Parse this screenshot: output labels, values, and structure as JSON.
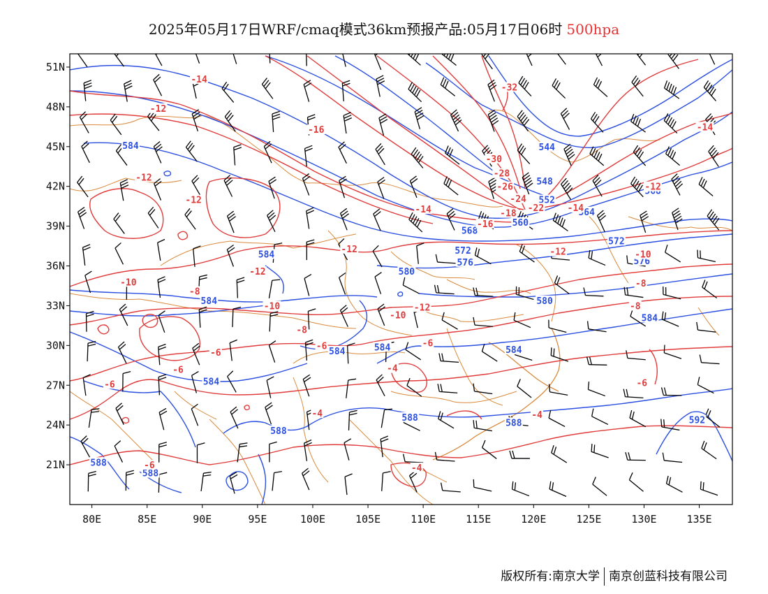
{
  "title": {
    "main": "2025年05月17日WRF/cmaq模式36km预报产品:05月17日06时",
    "level": "500hpa"
  },
  "axes": {
    "lon_ticks": [
      {
        "value": 80,
        "label": "80E"
      },
      {
        "value": 85,
        "label": "85E"
      },
      {
        "value": 90,
        "label": "90E"
      },
      {
        "value": 95,
        "label": "95E"
      },
      {
        "value": 100,
        "label": "100E"
      },
      {
        "value": 105,
        "label": "105E"
      },
      {
        "value": 110,
        "label": "110E"
      },
      {
        "value": 115,
        "label": "115E"
      },
      {
        "value": 120,
        "label": "120E"
      },
      {
        "value": 125,
        "label": "125E"
      },
      {
        "value": 130,
        "label": "130E"
      },
      {
        "value": 135,
        "label": "135E"
      }
    ],
    "lat_ticks": [
      {
        "value": 51,
        "label": "51N"
      },
      {
        "value": 48,
        "label": "48N"
      },
      {
        "value": 45,
        "label": "45N"
      },
      {
        "value": 42,
        "label": "42N"
      },
      {
        "value": 39,
        "label": "39N"
      },
      {
        "value": 36,
        "label": "36N"
      },
      {
        "value": 33,
        "label": "33N"
      },
      {
        "value": 30,
        "label": "30N"
      },
      {
        "value": 27,
        "label": "27N"
      },
      {
        "value": 24,
        "label": "24N"
      },
      {
        "value": 21,
        "label": "21N"
      }
    ],
    "lon_range": [
      78,
      138
    ],
    "lat_range": [
      18,
      52
    ]
  },
  "colors": {
    "height_contour": "#2b4fe0",
    "temp_contour": "#e03b3b",
    "boundary": "#d98a3c",
    "wind_barb": "#000000"
  },
  "height_labels": [
    {
      "text": "584",
      "lon": 83.5,
      "lat": 45.1
    },
    {
      "text": "544",
      "lon": 121.2,
      "lat": 45.0
    },
    {
      "text": "548",
      "lon": 121.0,
      "lat": 42.4
    },
    {
      "text": "552",
      "lon": 121.2,
      "lat": 41.0
    },
    {
      "text": "568",
      "lon": 130.8,
      "lat": 41.7
    },
    {
      "text": "564",
      "lon": 124.8,
      "lat": 40.1
    },
    {
      "text": "560",
      "lon": 118.8,
      "lat": 39.3
    },
    {
      "text": "568",
      "lon": 114.2,
      "lat": 38.7
    },
    {
      "text": "572",
      "lon": 113.6,
      "lat": 37.2
    },
    {
      "text": "572",
      "lon": 127.5,
      "lat": 37.9
    },
    {
      "text": "576",
      "lon": 113.8,
      "lat": 36.3
    },
    {
      "text": "576",
      "lon": 129.8,
      "lat": 36.4
    },
    {
      "text": "584",
      "lon": 95.8,
      "lat": 36.9
    },
    {
      "text": "580",
      "lon": 108.5,
      "lat": 35.6
    },
    {
      "text": "580",
      "lon": 121.0,
      "lat": 33.4
    },
    {
      "text": "584",
      "lon": 90.6,
      "lat": 33.4
    },
    {
      "text": "584",
      "lon": 130.5,
      "lat": 32.1
    },
    {
      "text": "584",
      "lon": 102.2,
      "lat": 29.6
    },
    {
      "text": "584",
      "lon": 106.3,
      "lat": 29.9
    },
    {
      "text": "584",
      "lon": 118.2,
      "lat": 29.7
    },
    {
      "text": "584",
      "lon": 90.8,
      "lat": 27.3
    },
    {
      "text": "588",
      "lon": 108.8,
      "lat": 24.6
    },
    {
      "text": "588",
      "lon": 118.2,
      "lat": 24.2
    },
    {
      "text": "588",
      "lon": 96.9,
      "lat": 23.6
    },
    {
      "text": "592",
      "lon": 134.8,
      "lat": 24.4
    },
    {
      "text": "588",
      "lon": 80.6,
      "lat": 21.2
    },
    {
      "text": "588",
      "lon": 85.3,
      "lat": 20.4
    }
  ],
  "temp_labels": [
    {
      "text": "-14",
      "lon": 89.7,
      "lat": 50.1
    },
    {
      "text": "-12",
      "lon": 86.0,
      "lat": 47.9
    },
    {
      "text": "-32",
      "lon": 117.8,
      "lat": 49.5
    },
    {
      "text": "-16",
      "lon": 100.3,
      "lat": 46.3
    },
    {
      "text": "-14",
      "lon": 135.5,
      "lat": 46.5
    },
    {
      "text": "-30",
      "lon": 116.4,
      "lat": 44.1
    },
    {
      "text": "-28",
      "lon": 117.1,
      "lat": 43.0
    },
    {
      "text": "-26",
      "lon": 117.4,
      "lat": 42.0
    },
    {
      "text": "-24",
      "lon": 118.6,
      "lat": 41.1
    },
    {
      "text": "-22",
      "lon": 120.2,
      "lat": 40.4
    },
    {
      "text": "-18",
      "lon": 117.7,
      "lat": 40.0
    },
    {
      "text": "-16",
      "lon": 115.6,
      "lat": 39.2
    },
    {
      "text": "-14",
      "lon": 110.0,
      "lat": 40.3
    },
    {
      "text": "-14",
      "lon": 123.8,
      "lat": 40.4
    },
    {
      "text": "-12",
      "lon": 130.8,
      "lat": 42.0
    },
    {
      "text": "-12",
      "lon": 84.7,
      "lat": 42.7
    },
    {
      "text": "-12",
      "lon": 89.2,
      "lat": 41.0
    },
    {
      "text": "-12",
      "lon": 103.3,
      "lat": 37.3
    },
    {
      "text": "-12",
      "lon": 122.2,
      "lat": 37.1
    },
    {
      "text": "-10",
      "lon": 129.9,
      "lat": 36.9
    },
    {
      "text": "-12",
      "lon": 95.0,
      "lat": 35.6
    },
    {
      "text": "-10",
      "lon": 83.3,
      "lat": 34.8
    },
    {
      "text": "-8",
      "lon": 89.3,
      "lat": 34.1
    },
    {
      "text": "-8",
      "lon": 129.7,
      "lat": 34.7
    },
    {
      "text": "-10",
      "lon": 96.3,
      "lat": 33.0
    },
    {
      "text": "-12",
      "lon": 109.9,
      "lat": 32.9
    },
    {
      "text": "-10",
      "lon": 107.7,
      "lat": 32.3
    },
    {
      "text": "-8",
      "lon": 129.2,
      "lat": 33.0
    },
    {
      "text": "-8",
      "lon": 99.0,
      "lat": 31.2
    },
    {
      "text": "-6",
      "lon": 100.8,
      "lat": 30.0
    },
    {
      "text": "-6",
      "lon": 110.4,
      "lat": 30.2
    },
    {
      "text": "-6",
      "lon": 91.2,
      "lat": 29.5
    },
    {
      "text": "-6",
      "lon": 87.8,
      "lat": 28.2
    },
    {
      "text": "-4",
      "lon": 107.2,
      "lat": 28.3
    },
    {
      "text": "-6",
      "lon": 81.6,
      "lat": 27.1
    },
    {
      "text": "-6",
      "lon": 129.8,
      "lat": 27.2
    },
    {
      "text": "-4",
      "lon": 100.4,
      "lat": 24.9
    },
    {
      "text": "-4",
      "lon": 120.3,
      "lat": 24.8
    },
    {
      "text": "-6",
      "lon": 85.2,
      "lat": 21.0
    },
    {
      "text": "-4",
      "lon": 109.4,
      "lat": 20.8
    }
  ],
  "footer": {
    "left": "版权所有:南京大学",
    "right": "南京创蓝科技有限公司"
  }
}
